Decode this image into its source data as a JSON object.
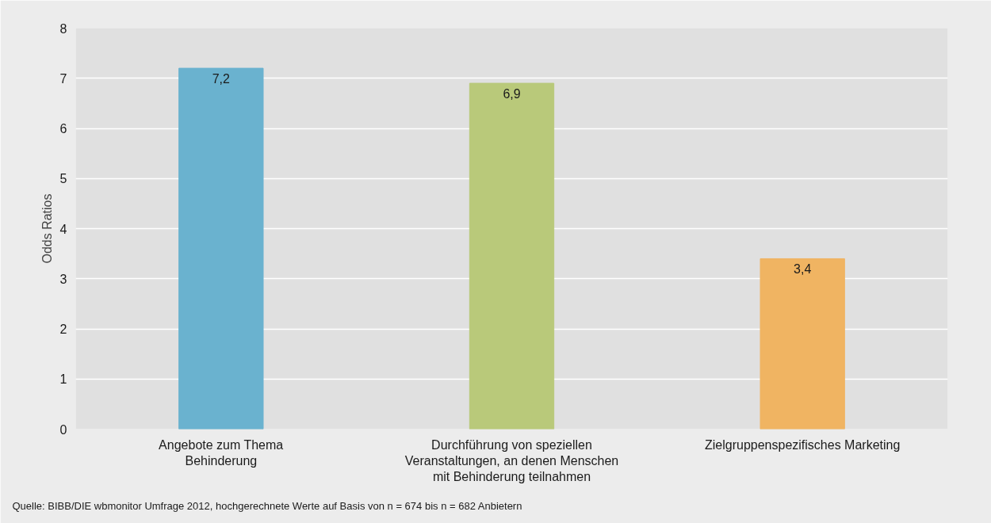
{
  "chart_data": {
    "type": "bar",
    "ylabel": "Odds Ratios",
    "categories": [
      "Angebote zum Thema\nBehinderung",
      "Durchführung von speziellen\nVeranstaltungen, an denen Menschen\nmit Behinderung teilnahmen",
      "Zielgruppenspezifisches Marketing"
    ],
    "values": [
      7.2,
      6.9,
      3.4
    ],
    "colors": [
      "#6ab2cf",
      "#b9c97a",
      "#f0b462"
    ],
    "value_labels": [
      "7,2",
      "6,9",
      "3,4"
    ],
    "ylim": [
      0,
      8
    ],
    "yticks": [
      0,
      1,
      2,
      3,
      4,
      5,
      6,
      7,
      8
    ],
    "grid": "y",
    "annotations": [
      "Quelle: BIBB/DIE wbmonitor Umfrage 2012, hochgerechnete Werte auf Basis von n = 674 bis n = 682 Anbietern"
    ]
  }
}
